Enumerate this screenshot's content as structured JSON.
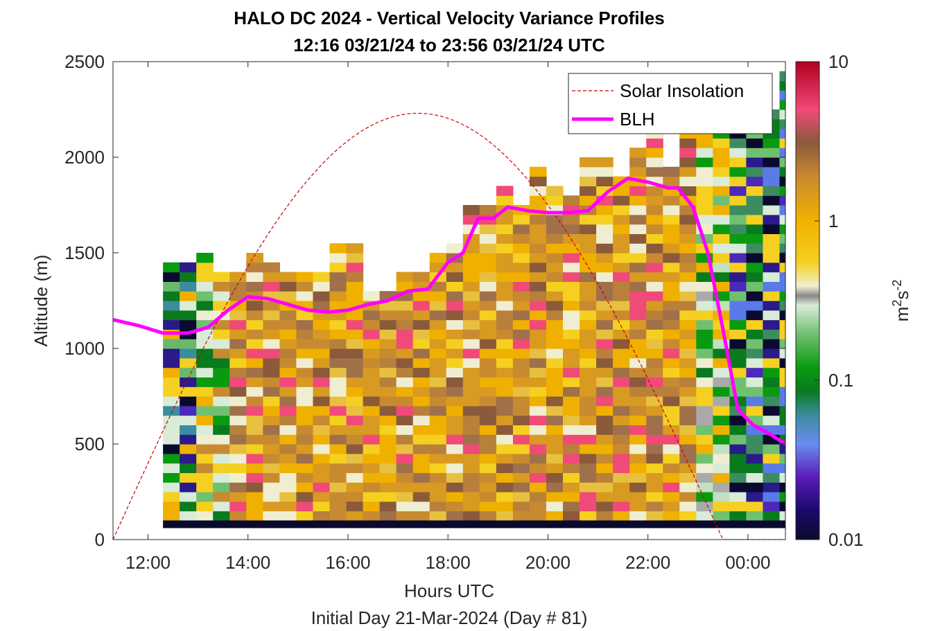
{
  "chart_data": {
    "type": "heatmap",
    "title": "HALO DC 2024 - Vertical Velocity Variance Profiles",
    "subtitle": "12:16 03/21/24 to 23:56 03/21/24  UTC",
    "xlabel": "Hours UTC",
    "xlabel2": "Initial Day 21-Mar-2024 (Day # 81)",
    "ylabel": "Altitude (m)",
    "colorbar_label_base": "m",
    "colorbar_label_exp1": "2",
    "colorbar_label_mid": "s",
    "colorbar_label_exp2": "-2",
    "xlim_hours": [
      11.3,
      24.75
    ],
    "ylim": [
      0,
      2500
    ],
    "x_ticks": [
      {
        "hour": 12,
        "label": "12:00"
      },
      {
        "hour": 14,
        "label": "14:00"
      },
      {
        "hour": 16,
        "label": "16:00"
      },
      {
        "hour": 18,
        "label": "18:00"
      },
      {
        "hour": 20,
        "label": "20:00"
      },
      {
        "hour": 22,
        "label": "22:00"
      },
      {
        "hour": 24,
        "label": "00:00"
      }
    ],
    "y_ticks": [
      {
        "value": 0,
        "label": "0"
      },
      {
        "value": 500,
        "label": "500"
      },
      {
        "value": 1000,
        "label": "1000"
      },
      {
        "value": 1500,
        "label": "1500"
      },
      {
        "value": 2000,
        "label": "2000"
      },
      {
        "value": 2500,
        "label": "2500"
      }
    ],
    "colorbar": {
      "scale": "log",
      "range": [
        0.01,
        10
      ],
      "ticks": [
        {
          "value": 0.01,
          "label": "0.01"
        },
        {
          "value": 0.1,
          "label": "0.1"
        },
        {
          "value": 1,
          "label": "1"
        },
        {
          "value": 10,
          "label": "10"
        }
      ]
    },
    "legend": {
      "position": "top-right",
      "entries": [
        {
          "label": "Solar Insolation",
          "color": "#cc0000",
          "style": "dashed"
        },
        {
          "label": "BLH",
          "color": "#ff00ff",
          "style": "solid"
        }
      ]
    },
    "bins": {
      "x_start_hour": 12.3,
      "x_step_hour": 0.3333,
      "y_start_m": 100,
      "y_step_m": 50
    },
    "columns": [
      {
        "top": 1450,
        "regime": 1
      },
      {
        "top": 1450,
        "regime": 1
      },
      {
        "top": 1500,
        "regime": 2
      },
      {
        "top": 1400,
        "regime": 2
      },
      {
        "top": 1400,
        "regime": 3
      },
      {
        "top": 1500,
        "regime": 3
      },
      {
        "top": 1450,
        "regime": 3
      },
      {
        "top": 1400,
        "regime": 3
      },
      {
        "top": 1400,
        "regime": 3
      },
      {
        "top": 1400,
        "regime": 3
      },
      {
        "top": 1550,
        "regime": 3
      },
      {
        "top": 1550,
        "regime": 3
      },
      {
        "top": 1300,
        "regime": 3
      },
      {
        "top": 1300,
        "regime": 3
      },
      {
        "top": 1400,
        "regime": 3
      },
      {
        "top": 1400,
        "regime": 3
      },
      {
        "top": 1500,
        "regime": 3
      },
      {
        "top": 1550,
        "regime": 3
      },
      {
        "top": 1750,
        "regime": 3
      },
      {
        "top": 1750,
        "regime": 3
      },
      {
        "top": 1850,
        "regime": 3
      },
      {
        "top": 1750,
        "regime": 3
      },
      {
        "top": 1950,
        "regime": 3
      },
      {
        "top": 1850,
        "regime": 3
      },
      {
        "top": 1800,
        "regime": 3
      },
      {
        "top": 2000,
        "regime": 3
      },
      {
        "top": 2000,
        "regime": 3
      },
      {
        "top": 1900,
        "regime": 3
      },
      {
        "top": 2050,
        "regime": 3
      },
      {
        "top": 2150,
        "regime": 3
      },
      {
        "top": 1950,
        "regime": 3
      },
      {
        "top": 2150,
        "regime": 3
      },
      {
        "top": 2150,
        "regime": 4
      },
      {
        "top": 2150,
        "regime": 4
      },
      {
        "top": 2150,
        "regime": 5
      },
      {
        "top": 2150,
        "regime": 5
      },
      {
        "top": 2250,
        "regime": 5
      },
      {
        "top": 2450,
        "regime": 5
      }
    ],
    "series": [
      {
        "name": "BLH",
        "x_hours": [
          11.3,
          11.8,
          12.3,
          12.8,
          13.2,
          13.6,
          14.0,
          14.4,
          14.8,
          15.2,
          15.6,
          16.0,
          16.4,
          16.8,
          17.2,
          17.6,
          18.0,
          18.3,
          18.6,
          18.9,
          19.2,
          19.6,
          20.0,
          20.4,
          20.8,
          21.2,
          21.6,
          22.0,
          22.4,
          22.6,
          22.9,
          23.2,
          23.5,
          23.8,
          24.1,
          24.45,
          24.75
        ],
        "y": [
          1150,
          1120,
          1080,
          1080,
          1110,
          1200,
          1270,
          1260,
          1230,
          1200,
          1190,
          1200,
          1230,
          1250,
          1300,
          1310,
          1450,
          1500,
          1680,
          1680,
          1740,
          1720,
          1710,
          1710,
          1720,
          1820,
          1890,
          1870,
          1840,
          1840,
          1740,
          1500,
          1100,
          680,
          600,
          550,
          500
        ]
      },
      {
        "name": "Solar Insolation",
        "sunrise_hour": 11.3,
        "peak_hour": 17.35,
        "sunset_hour": 23.5,
        "peak_value": 2230
      }
    ]
  }
}
